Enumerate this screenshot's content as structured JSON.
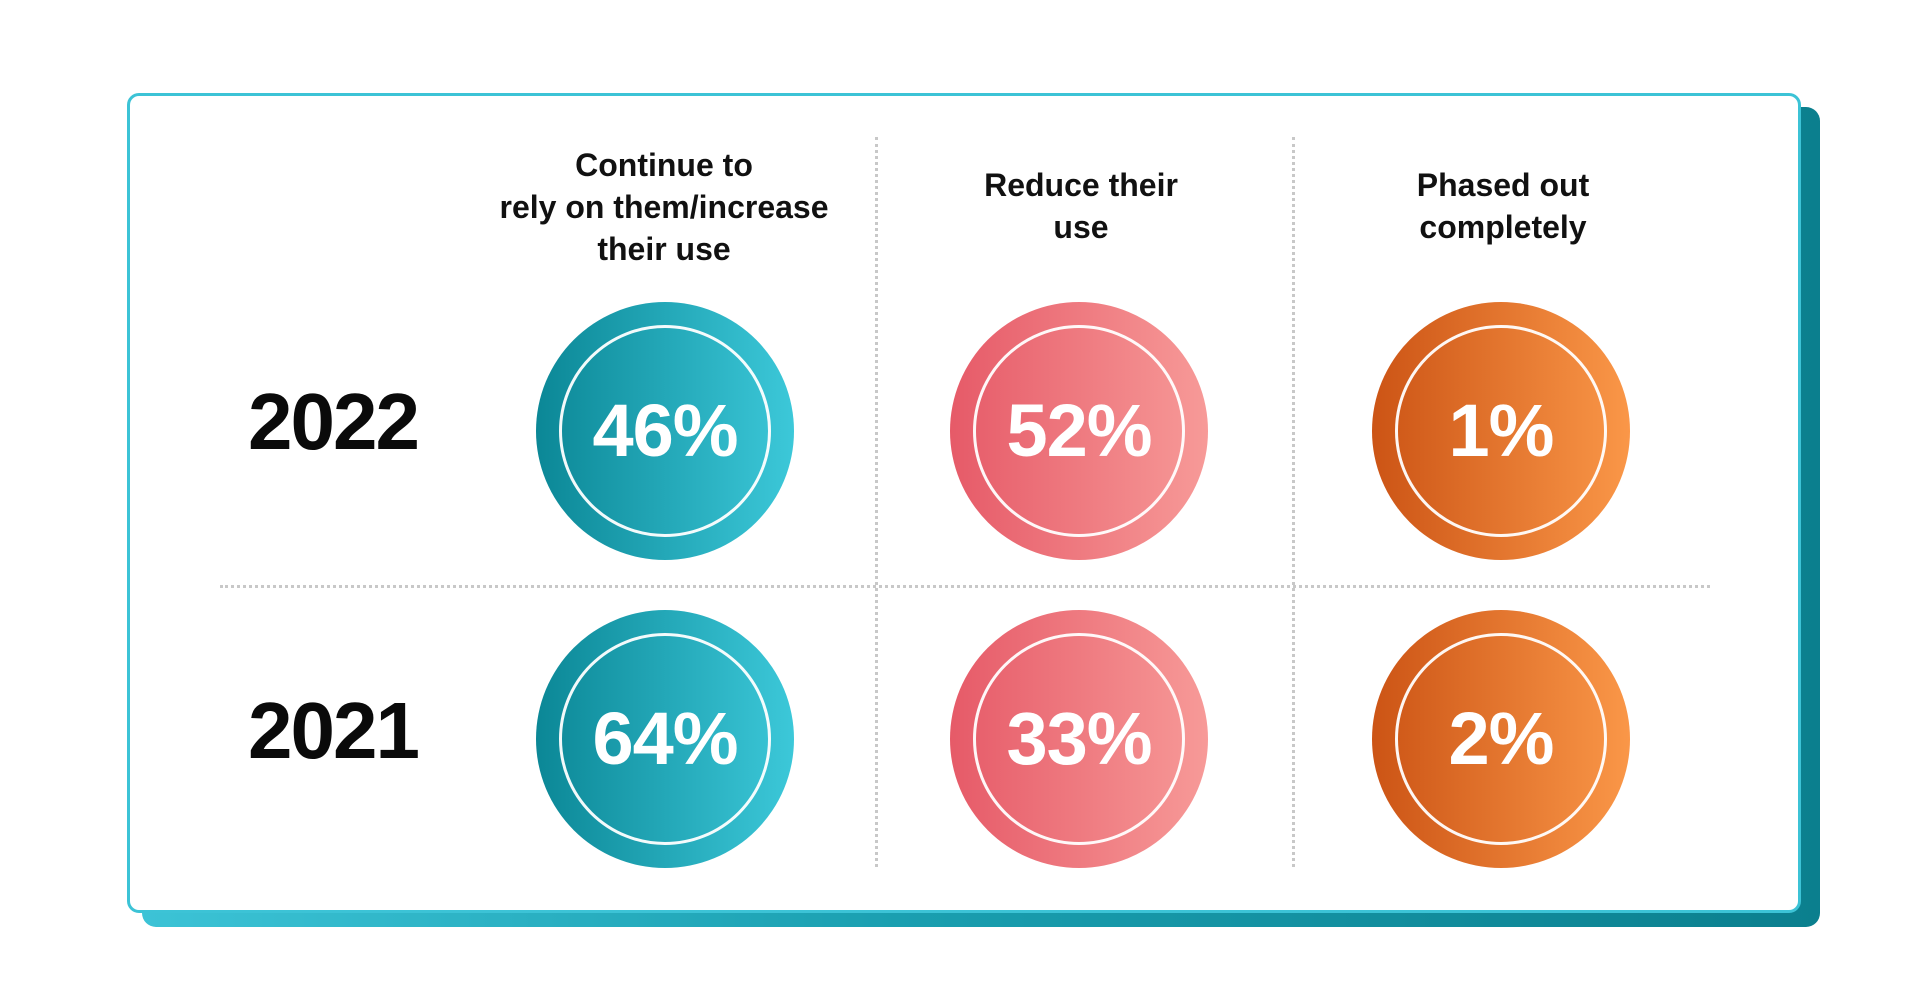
{
  "chart_data": {
    "type": "table",
    "columns": [
      "Continue to\nrely on them/increase\ntheir use",
      "Reduce their\nuse",
      "Phased out\ncompletely"
    ],
    "rows": [
      {
        "label": "2022",
        "values": [
          "46%",
          "52%",
          "1%"
        ]
      },
      {
        "label": "2021",
        "values": [
          "64%",
          "33%",
          "2%"
        ]
      }
    ],
    "series": [
      {
        "name": "2022",
        "values": [
          46,
          52,
          1
        ]
      },
      {
        "name": "2021",
        "values": [
          64,
          33,
          2
        ]
      }
    ],
    "unit": "%"
  },
  "colors": {
    "frame_accent": "#3cc3d6",
    "frame_shadow_dark": "#0b7f8e",
    "col1_from": "#0b8796",
    "col1_to": "#3cc8d9",
    "col2_from": "#e65a68",
    "col2_to": "#f79a98",
    "col3_from": "#cc5415",
    "col3_to": "#fa9748",
    "divider": "#c8c8c8"
  }
}
